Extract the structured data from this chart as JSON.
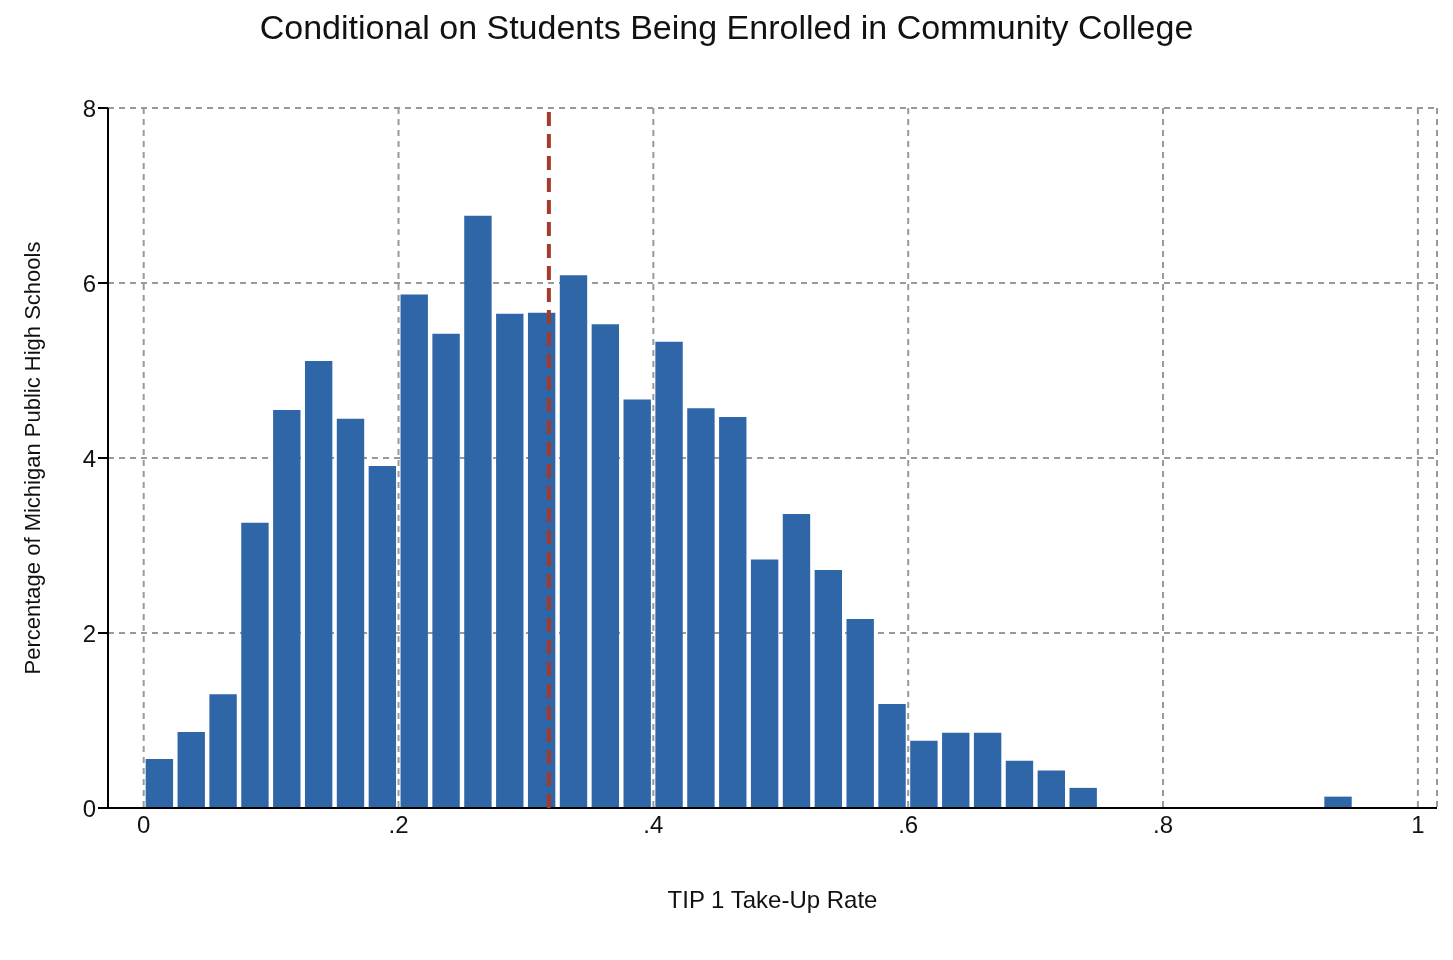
{
  "chart_data": {
    "type": "histogram",
    "title": "Conditional on Students Being Enrolled in Community College",
    "xlabel": "TIP 1 Take-Up Rate",
    "ylabel": "Percentage of Michigan Public High Schools",
    "bins": [
      0,
      0.025,
      0.05,
      0.075,
      0.1,
      0.125,
      0.15,
      0.175,
      0.2,
      0.225,
      0.25,
      0.275,
      0.3,
      0.325,
      0.35,
      0.375,
      0.4,
      0.425,
      0.45,
      0.475,
      0.5,
      0.525,
      0.55,
      0.575,
      0.6,
      0.625,
      0.65,
      0.675,
      0.7,
      0.725,
      0.75,
      0.775,
      0.8,
      0.825,
      0.85,
      0.875,
      0.9,
      0.925,
      0.95,
      0.975,
      1
    ],
    "values": [
      0.56,
      0.87,
      1.3,
      3.26,
      4.55,
      5.11,
      4.45,
      3.91,
      5.87,
      5.42,
      6.77,
      5.65,
      5.66,
      6.09,
      5.53,
      4.67,
      5.33,
      4.57,
      4.47,
      2.84,
      3.36,
      2.72,
      2.16,
      1.19,
      0.77,
      0.86,
      0.86,
      0.54,
      0.43,
      0.23,
      0,
      0,
      0,
      0,
      0,
      0,
      0,
      0.13,
      0,
      0
    ],
    "color": "#2f66a8",
    "xlim": [
      -0.028,
      1.015
    ],
    "xticks": [
      0,
      {
        "value": 0.2,
        "label": ".2"
      },
      {
        "value": 0.4,
        "label": ".4"
      },
      {
        "value": 0.6,
        "label": ".6"
      },
      {
        "value": 0.8,
        "label": ".8"
      },
      1
    ],
    "ylim": [
      0,
      8
    ],
    "yticks": [
      0,
      2,
      4,
      6,
      8
    ],
    "grid": true,
    "ref_lines": [
      {
        "axis": "x",
        "value": 0.318,
        "color": "#a33a2a",
        "line_style": "dashed"
      }
    ]
  }
}
